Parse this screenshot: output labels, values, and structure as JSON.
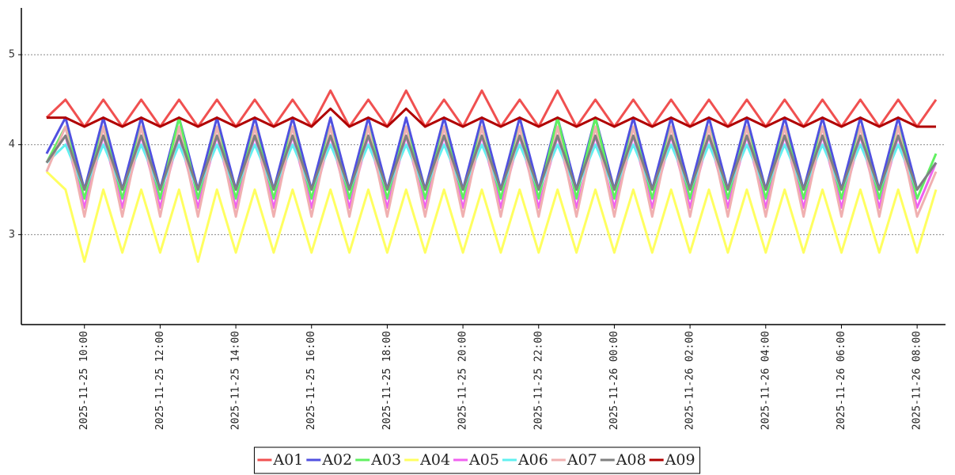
{
  "chart_data": {
    "type": "line",
    "x": [
      "2025-11-25 09:00",
      "2025-11-25 09:30",
      "2025-11-25 10:00",
      "2025-11-25 10:30",
      "2025-11-25 11:00",
      "2025-11-25 11:30",
      "2025-11-25 12:00",
      "2025-11-25 12:30",
      "2025-11-25 13:00",
      "2025-11-25 13:30",
      "2025-11-25 14:00",
      "2025-11-25 14:30",
      "2025-11-25 15:00",
      "2025-11-25 15:30",
      "2025-11-25 16:00",
      "2025-11-25 16:30",
      "2025-11-25 17:00",
      "2025-11-25 17:30",
      "2025-11-25 18:00",
      "2025-11-25 18:30",
      "2025-11-25 19:00",
      "2025-11-25 19:30",
      "2025-11-25 20:00",
      "2025-11-25 20:30",
      "2025-11-25 21:00",
      "2025-11-25 21:30",
      "2025-11-25 22:00",
      "2025-11-25 22:30",
      "2025-11-25 23:00",
      "2025-11-25 23:30",
      "2025-11-26 00:00",
      "2025-11-26 00:30",
      "2025-11-26 01:00",
      "2025-11-26 01:30",
      "2025-11-26 02:00",
      "2025-11-26 02:30",
      "2025-11-26 03:00",
      "2025-11-26 03:30",
      "2025-11-26 04:00",
      "2025-11-26 04:30",
      "2025-11-26 05:00",
      "2025-11-26 05:30",
      "2025-11-26 06:00",
      "2025-11-26 06:30",
      "2025-11-26 07:00",
      "2025-11-26 07:30",
      "2025-11-26 08:00",
      "2025-11-26 08:30"
    ],
    "series": [
      {
        "name": "A01",
        "color": "#f05050",
        "values": [
          4.3,
          4.5,
          4.2,
          4.5,
          4.2,
          4.5,
          4.2,
          4.5,
          4.2,
          4.5,
          4.2,
          4.5,
          4.2,
          4.5,
          4.2,
          4.6,
          4.2,
          4.5,
          4.2,
          4.6,
          4.2,
          4.5,
          4.2,
          4.6,
          4.2,
          4.5,
          4.2,
          4.6,
          4.2,
          4.5,
          4.2,
          4.5,
          4.2,
          4.5,
          4.2,
          4.5,
          4.2,
          4.5,
          4.2,
          4.5,
          4.2,
          4.5,
          4.2,
          4.5,
          4.2,
          4.5,
          4.2,
          4.5
        ]
      },
      {
        "name": "A02",
        "color": "#5050e0",
        "values": [
          3.9,
          4.3,
          3.5,
          4.3,
          3.5,
          4.3,
          3.5,
          4.3,
          3.5,
          4.3,
          3.5,
          4.3,
          3.5,
          4.3,
          3.5,
          4.3,
          3.5,
          4.3,
          3.5,
          4.3,
          3.5,
          4.3,
          3.5,
          4.3,
          3.5,
          4.3,
          3.5,
          4.3,
          3.5,
          4.3,
          3.5,
          4.3,
          3.5,
          4.3,
          3.5,
          4.3,
          3.5,
          4.3,
          3.5,
          4.3,
          3.5,
          4.3,
          3.5,
          4.3,
          3.5,
          4.3,
          3.5,
          3.8
        ]
      },
      {
        "name": "A03",
        "color": "#60f060",
        "values": [
          3.8,
          4.2,
          3.4,
          4.2,
          3.4,
          4.2,
          3.4,
          4.3,
          3.4,
          4.2,
          3.4,
          4.2,
          3.4,
          4.2,
          3.4,
          4.2,
          3.4,
          4.2,
          3.4,
          4.2,
          3.4,
          4.2,
          3.4,
          4.2,
          3.4,
          4.2,
          3.4,
          4.3,
          3.4,
          4.3,
          3.4,
          4.2,
          3.4,
          4.2,
          3.4,
          4.2,
          3.4,
          4.2,
          3.4,
          4.2,
          3.4,
          4.2,
          3.4,
          4.2,
          3.4,
          4.2,
          3.4,
          3.9
        ]
      },
      {
        "name": "A04",
        "color": "#ffff60",
        "values": [
          3.7,
          3.5,
          2.7,
          3.5,
          2.8,
          3.5,
          2.8,
          3.5,
          2.7,
          3.5,
          2.8,
          3.5,
          2.8,
          3.5,
          2.8,
          3.5,
          2.8,
          3.5,
          2.8,
          3.5,
          2.8,
          3.5,
          2.8,
          3.5,
          2.8,
          3.5,
          2.8,
          3.5,
          2.8,
          3.5,
          2.8,
          3.5,
          2.8,
          3.5,
          2.8,
          3.5,
          2.8,
          3.5,
          2.8,
          3.5,
          2.8,
          3.5,
          2.8,
          3.5,
          2.8,
          3.5,
          2.8,
          3.5
        ]
      },
      {
        "name": "A05",
        "color": "#f060f0",
        "values": [
          3.8,
          4.1,
          3.3,
          4.1,
          3.3,
          4.1,
          3.3,
          4.1,
          3.3,
          4.1,
          3.3,
          4.1,
          3.3,
          4.1,
          3.3,
          4.1,
          3.3,
          4.1,
          3.3,
          4.1,
          3.3,
          4.1,
          3.3,
          4.1,
          3.3,
          4.1,
          3.3,
          4.1,
          3.3,
          4.1,
          3.3,
          4.1,
          3.3,
          4.1,
          3.3,
          4.1,
          3.3,
          4.1,
          3.3,
          4.1,
          3.3,
          4.1,
          3.3,
          4.1,
          3.3,
          4.1,
          3.3,
          3.8
        ]
      },
      {
        "name": "A06",
        "color": "#60f0f0",
        "values": [
          3.8,
          4.0,
          3.5,
          4.0,
          3.5,
          4.0,
          3.5,
          4.0,
          3.5,
          4.0,
          3.5,
          4.0,
          3.5,
          4.0,
          3.5,
          4.0,
          3.5,
          4.0,
          3.5,
          4.0,
          3.5,
          4.0,
          3.5,
          4.0,
          3.5,
          4.0,
          3.5,
          4.0,
          3.5,
          4.0,
          3.5,
          4.0,
          3.5,
          4.0,
          3.5,
          4.0,
          3.5,
          4.0,
          3.5,
          4.0,
          3.5,
          4.0,
          3.5,
          4.0,
          3.5,
          4.0,
          3.5,
          3.8
        ]
      },
      {
        "name": "A07",
        "color": "#f0b0b0",
        "values": [
          3.7,
          4.2,
          3.2,
          4.2,
          3.2,
          4.2,
          3.2,
          4.2,
          3.2,
          4.2,
          3.2,
          4.2,
          3.2,
          4.2,
          3.2,
          4.2,
          3.2,
          4.2,
          3.2,
          4.2,
          3.2,
          4.2,
          3.2,
          4.2,
          3.2,
          4.2,
          3.2,
          4.2,
          3.2,
          4.2,
          3.2,
          4.2,
          3.2,
          4.2,
          3.2,
          4.2,
          3.2,
          4.2,
          3.2,
          4.2,
          3.2,
          4.2,
          3.2,
          4.2,
          3.2,
          4.2,
          3.2,
          3.7
        ]
      },
      {
        "name": "A08",
        "color": "#808080",
        "values": [
          3.8,
          4.1,
          3.5,
          4.1,
          3.5,
          4.1,
          3.5,
          4.1,
          3.5,
          4.1,
          3.5,
          4.1,
          3.5,
          4.1,
          3.5,
          4.1,
          3.5,
          4.1,
          3.5,
          4.1,
          3.5,
          4.1,
          3.5,
          4.1,
          3.5,
          4.1,
          3.5,
          4.1,
          3.5,
          4.1,
          3.5,
          4.1,
          3.5,
          4.1,
          3.5,
          4.1,
          3.5,
          4.1,
          3.5,
          4.1,
          3.5,
          4.1,
          3.5,
          4.1,
          3.5,
          4.1,
          3.5,
          3.8
        ]
      },
      {
        "name": "A09",
        "color": "#b00000",
        "values": [
          4.3,
          4.3,
          4.2,
          4.3,
          4.2,
          4.3,
          4.2,
          4.3,
          4.2,
          4.3,
          4.2,
          4.3,
          4.2,
          4.3,
          4.2,
          4.4,
          4.2,
          4.3,
          4.2,
          4.4,
          4.2,
          4.3,
          4.2,
          4.3,
          4.2,
          4.3,
          4.2,
          4.3,
          4.2,
          4.3,
          4.2,
          4.3,
          4.2,
          4.3,
          4.2,
          4.3,
          4.2,
          4.3,
          4.2,
          4.3,
          4.2,
          4.3,
          4.2,
          4.3,
          4.2,
          4.3,
          4.2,
          4.2
        ]
      }
    ],
    "xlim": [
      "2025-11-25 08:20",
      "2025-11-26 08:45"
    ],
    "xticks": [
      "2025-11-25 10:00",
      "2025-11-25 12:00",
      "2025-11-25 14:00",
      "2025-11-25 16:00",
      "2025-11-25 18:00",
      "2025-11-25 20:00",
      "2025-11-25 22:00",
      "2025-11-26 00:00",
      "2025-11-26 02:00",
      "2025-11-26 04:00",
      "2025-11-26 06:00",
      "2025-11-26 08:00"
    ],
    "ylim": [
      2.0,
      5.52
    ],
    "yticks": [
      3,
      4,
      5
    ],
    "grid": true,
    "legend": "bottom"
  }
}
